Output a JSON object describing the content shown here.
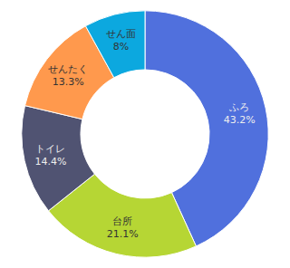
{
  "chart_data": {
    "type": "pie",
    "categories": [
      "ふろ",
      "台所",
      "トイレ",
      "せんたく",
      "せん面"
    ],
    "values": [
      43.2,
      21.1,
      14.4,
      13.3,
      8.0
    ],
    "value_labels": [
      "43.2%",
      "21.1%",
      "14.4%",
      "13.3%",
      "8%"
    ],
    "data_labels": true
  }
}
